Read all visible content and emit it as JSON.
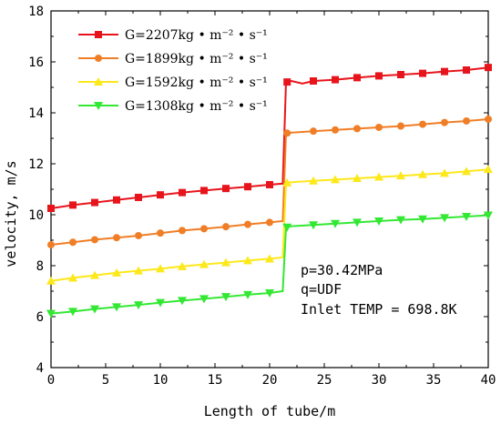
{
  "chart_data": {
    "type": "line",
    "xlabel": "Length of tube/m",
    "ylabel": "velocity, m/s",
    "xlim": [
      0,
      40
    ],
    "ylim": [
      4,
      18
    ],
    "xticks": [
      "0",
      "5",
      "10",
      "15",
      "20",
      "25",
      "30",
      "35",
      "40"
    ],
    "yticks": [
      "4",
      "6",
      "8",
      "10",
      "12",
      "14",
      "16",
      "18"
    ],
    "grid": false,
    "legend_position": "top-left",
    "annotations": [
      "p=30.42MPa",
      "q=UDF",
      "Inlet TEMP = 698.8K"
    ],
    "series": [
      {
        "name": "G=2207kg • m⁻² • s⁻¹",
        "color": "#e8141c",
        "marker": "square",
        "x": [
          0,
          2,
          4,
          6,
          8,
          10,
          12,
          14,
          16,
          18,
          20,
          21.2,
          21.5,
          22,
          23,
          24,
          26,
          28,
          30,
          32,
          34,
          36,
          38,
          40
        ],
        "y": [
          10.25,
          10.38,
          10.48,
          10.58,
          10.68,
          10.78,
          10.87,
          10.95,
          11.03,
          11.1,
          11.18,
          11.22,
          15.2,
          15.25,
          15.15,
          15.25,
          15.3,
          15.38,
          15.45,
          15.5,
          15.55,
          15.62,
          15.68,
          15.78
        ],
        "marker_x": [
          0,
          2,
          4,
          6,
          8,
          10,
          12,
          14,
          16,
          18,
          20,
          21.6,
          24,
          26,
          28,
          30,
          32,
          34,
          36,
          38,
          40
        ]
      },
      {
        "name": "G=1899kg • m⁻² • s⁻¹",
        "color": "#f07e26",
        "marker": "circle",
        "x": [
          0,
          2,
          4,
          6,
          8,
          10,
          12,
          14,
          16,
          18,
          20,
          21.2,
          21.5,
          22,
          24,
          26,
          28,
          30,
          32,
          34,
          36,
          38,
          40
        ],
        "y": [
          8.82,
          8.92,
          9.02,
          9.1,
          9.18,
          9.28,
          9.38,
          9.45,
          9.53,
          9.62,
          9.7,
          9.75,
          13.2,
          13.22,
          13.28,
          13.33,
          13.38,
          13.43,
          13.48,
          13.55,
          13.62,
          13.68,
          13.75
        ],
        "marker_x": [
          0,
          2,
          4,
          6,
          8,
          10,
          12,
          14,
          16,
          18,
          20,
          21.6,
          24,
          26,
          28,
          30,
          32,
          34,
          36,
          38,
          40
        ]
      },
      {
        "name": "G=1592kg • m⁻² • s⁻¹",
        "color": "#fde81a",
        "marker": "triangle-up",
        "x": [
          0,
          2,
          4,
          6,
          8,
          10,
          12,
          14,
          16,
          18,
          20,
          21.2,
          21.5,
          22,
          24,
          26,
          28,
          30,
          32,
          34,
          36,
          38,
          40
        ],
        "y": [
          7.4,
          7.52,
          7.62,
          7.72,
          7.8,
          7.88,
          7.97,
          8.05,
          8.12,
          8.2,
          8.27,
          8.32,
          11.25,
          11.28,
          11.33,
          11.38,
          11.43,
          11.48,
          11.53,
          11.58,
          11.63,
          11.7,
          11.78
        ],
        "marker_x": [
          0,
          2,
          4,
          6,
          8,
          10,
          12,
          14,
          16,
          18,
          20,
          21.6,
          24,
          26,
          28,
          30,
          32,
          34,
          36,
          38,
          40
        ]
      },
      {
        "name": "G=1308kg • m⁻² • s⁻¹",
        "color": "#33e833",
        "marker": "triangle-down",
        "x": [
          0,
          2,
          4,
          6,
          8,
          10,
          12,
          14,
          16,
          18,
          20,
          21.2,
          21.5,
          22,
          24,
          26,
          28,
          30,
          32,
          34,
          36,
          38,
          40
        ],
        "y": [
          6.12,
          6.2,
          6.3,
          6.38,
          6.46,
          6.55,
          6.63,
          6.7,
          6.78,
          6.86,
          6.93,
          7.0,
          9.5,
          9.55,
          9.6,
          9.65,
          9.7,
          9.75,
          9.8,
          9.83,
          9.88,
          9.93,
          9.98
        ],
        "marker_x": [
          0,
          2,
          4,
          6,
          8,
          10,
          12,
          14,
          16,
          18,
          20,
          21.6,
          24,
          26,
          28,
          30,
          32,
          34,
          36,
          38,
          40
        ]
      }
    ]
  }
}
